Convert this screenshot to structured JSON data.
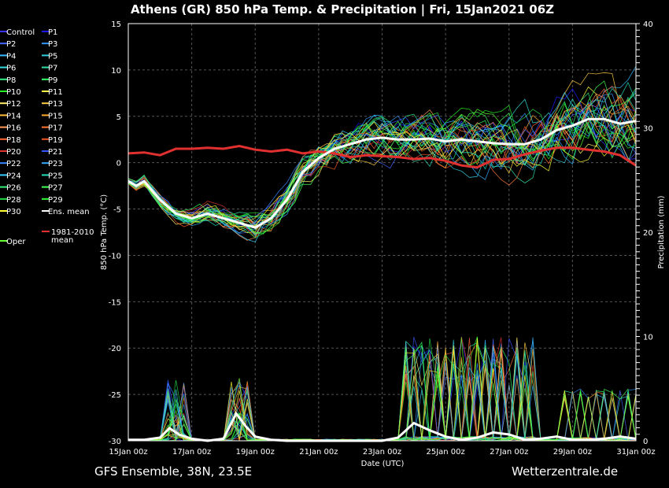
{
  "title": "Athens  (GR)  850 hPa Temp. & Precipitation | Fri, 15Jan2021 06Z",
  "footer_left": "GFS Ensemble, 38N, 23.5E",
  "footer_right": "Wetterzentrale.de",
  "chart_data": {
    "type": "line",
    "xlabel": "Date (UTC)",
    "ylabel_left": "850 hPa Temp. (°C)",
    "ylabel_right": "Precipitation (mm)",
    "x_ticks": [
      "15Jan 00z",
      "17Jan 00z",
      "19Jan 00z",
      "21Jan 00z",
      "23Jan 00z",
      "25Jan 00z",
      "27Jan 00z",
      "29Jan 00z",
      "31Jan 00z"
    ],
    "x_range_days": [
      0,
      16
    ],
    "ylim_left": [
      -30,
      15
    ],
    "yticks_left": [
      -30,
      -25,
      -20,
      -15,
      -10,
      -5,
      0,
      5,
      10,
      15
    ],
    "ylim_right": [
      0,
      40
    ],
    "yticks_right": [
      0,
      10,
      20,
      30,
      40
    ],
    "grid": true,
    "legend_placement": "left",
    "legend": [
      {
        "name": "Control",
        "color": "#3333ff"
      },
      {
        "name": "P1",
        "color": "#1a1aff"
      },
      {
        "name": "P2",
        "color": "#4466ff"
      },
      {
        "name": "P3",
        "color": "#3399ff"
      },
      {
        "name": "P4",
        "color": "#33bbff"
      },
      {
        "name": "P5",
        "color": "#33ccdd"
      },
      {
        "name": "P6",
        "color": "#33dddd"
      },
      {
        "name": "P7",
        "color": "#33ddaa"
      },
      {
        "name": "P8",
        "color": "#33ee88"
      },
      {
        "name": "P9",
        "color": "#33ff66"
      },
      {
        "name": "P10",
        "color": "#22ee22"
      },
      {
        "name": "P11",
        "color": "#ffff44"
      },
      {
        "name": "P12",
        "color": "#ffee66"
      },
      {
        "name": "P13",
        "color": "#ffcc44"
      },
      {
        "name": "P14",
        "color": "#ffbb33"
      },
      {
        "name": "P15",
        "color": "#ffaa33"
      },
      {
        "name": "P16",
        "color": "#ff9955"
      },
      {
        "name": "P17",
        "color": "#ff7733"
      },
      {
        "name": "P18",
        "color": "#ff6633"
      },
      {
        "name": "P19",
        "color": "#ee5522"
      },
      {
        "name": "P20",
        "color": "#dd3333"
      },
      {
        "name": "P21",
        "color": "#3355ff"
      },
      {
        "name": "P22",
        "color": "#3388ff"
      },
      {
        "name": "P23",
        "color": "#33aaff"
      },
      {
        "name": "P24",
        "color": "#33ccff"
      },
      {
        "name": "P25",
        "color": "#22ddbb"
      },
      {
        "name": "P26",
        "color": "#33ee77"
      },
      {
        "name": "P27",
        "color": "#44ff55"
      },
      {
        "name": "P28",
        "color": "#22dd44"
      },
      {
        "name": "P29",
        "color": "#33ff33"
      },
      {
        "name": "P30",
        "color": "#ffff33"
      },
      {
        "name": "Ens. mean",
        "color": "#ffffff"
      },
      {
        "name": "1981-2010 mean",
        "color": "#e03030"
      },
      {
        "name": "Oper",
        "color": "#66ff33"
      }
    ],
    "ens_mean_temp": {
      "x": [
        0,
        0.25,
        0.5,
        0.75,
        1,
        1.5,
        2,
        2.5,
        3,
        3.5,
        4,
        4.5,
        5,
        5.5,
        6,
        6.5,
        7,
        7.5,
        8,
        8.5,
        9,
        9.5,
        10,
        10.5,
        11,
        11.5,
        12,
        12.5,
        13,
        13.5,
        14,
        14.5,
        15,
        15.5,
        16
      ],
      "y": [
        -2,
        -2.5,
        -2,
        -3,
        -4,
        -5.5,
        -6,
        -5.5,
        -6,
        -6.5,
        -7,
        -6,
        -4,
        -1,
        0.5,
        1.5,
        2,
        2.5,
        2.7,
        2.5,
        2.5,
        2.6,
        2.3,
        2.5,
        2.3,
        2.1,
        2.0,
        2.0,
        2.5,
        3.5,
        4,
        4.7,
        4.7,
        4.2,
        4.5
      ]
    },
    "climate_mean_temp": {
      "x": [
        0,
        0.5,
        1,
        1.5,
        2,
        2.5,
        3,
        3.5,
        4,
        4.5,
        5,
        5.5,
        6,
        6.5,
        7,
        7.5,
        8,
        8.5,
        9,
        9.5,
        10,
        10.5,
        11,
        11.5,
        12,
        12.5,
        13,
        13.5,
        14,
        14.5,
        15,
        15.5,
        16
      ],
      "y": [
        1,
        1.1,
        0.8,
        1.5,
        1.5,
        1.6,
        1.5,
        1.8,
        1.4,
        1.2,
        1.4,
        1.0,
        1.2,
        1.0,
        0.6,
        0.8,
        0.7,
        0.6,
        0.4,
        0.5,
        0.2,
        -0.3,
        -0.5,
        0.3,
        0.4,
        0.9,
        1.3,
        1.6,
        1.6,
        1.4,
        1.2,
        0.8,
        -0.3
      ]
    },
    "ens_mean_precip": {
      "x": [
        0,
        0.5,
        1,
        1.3,
        1.6,
        2,
        2.5,
        3,
        3.4,
        3.7,
        4,
        4.5,
        5,
        6,
        7,
        8,
        8.5,
        9,
        9.5,
        10,
        10.5,
        11,
        11.5,
        12,
        12.5,
        13,
        13.5,
        14,
        14.5,
        15,
        15.5,
        16
      ],
      "y": [
        0.1,
        0.1,
        0.3,
        1.2,
        0.6,
        0.2,
        0,
        0.2,
        2.6,
        1.4,
        0.4,
        0.1,
        0,
        0,
        0,
        0,
        0.3,
        1.7,
        1.0,
        0.4,
        0.1,
        0.3,
        0.8,
        0.6,
        0.1,
        0.2,
        0.4,
        0.1,
        0.1,
        0.2,
        0.4,
        0.2
      ]
    }
  }
}
